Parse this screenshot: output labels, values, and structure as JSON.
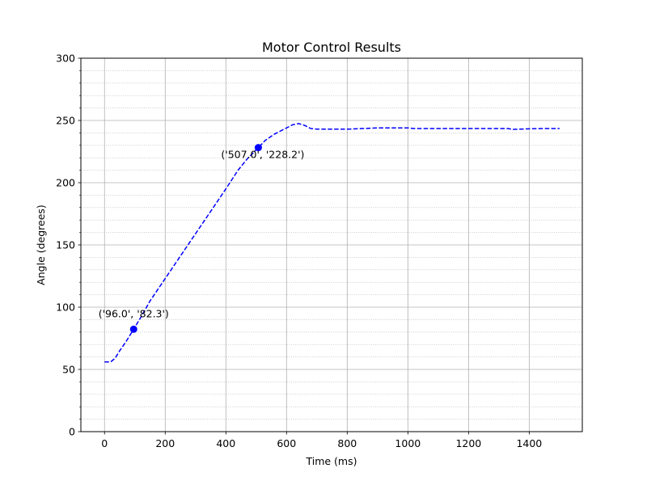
{
  "chart_data": {
    "type": "line",
    "title": "Motor Control Results",
    "xlabel": "Time (ms)",
    "ylabel": "Angle (degrees)",
    "xlim": [
      -78,
      1575
    ],
    "ylim": [
      0,
      300
    ],
    "xticks": [
      0,
      200,
      400,
      600,
      800,
      1000,
      1200,
      1400
    ],
    "yticks": [
      0,
      50,
      100,
      150,
      200,
      250,
      300
    ],
    "y_minor_step": 10,
    "grid": {
      "major": true,
      "minor_y": true
    },
    "line_color": "#0000ff",
    "line_style": "dashed",
    "series": [
      {
        "x": [
          0,
          20,
          35,
          50,
          70,
          96,
          120,
          150,
          200,
          250,
          300,
          350,
          400,
          440,
          470,
          507,
          530,
          560,
          600,
          620,
          640,
          660,
          680,
          700,
          750,
          800,
          850,
          900,
          950,
          1000,
          1020,
          1100,
          1200,
          1300,
          1330,
          1345,
          1400,
          1450,
          1500
        ],
        "y": [
          56,
          56,
          59,
          65,
          72,
          82.3,
          92,
          105,
          123,
          141,
          159,
          177,
          195,
          210,
          219,
          228.2,
          234,
          239,
          244,
          246.5,
          247.5,
          246,
          243.5,
          243,
          243,
          243,
          243.5,
          244,
          244,
          244,
          243.5,
          243.5,
          243.5,
          243.5,
          243.5,
          242.8,
          243.3,
          243.5,
          243.5
        ]
      }
    ],
    "markers": [
      {
        "x": 96.0,
        "y": 82.3,
        "label": "('96.0', '82.3')"
      },
      {
        "x": 507.0,
        "y": 228.2,
        "label": "('507.0', '228.2')"
      }
    ]
  }
}
